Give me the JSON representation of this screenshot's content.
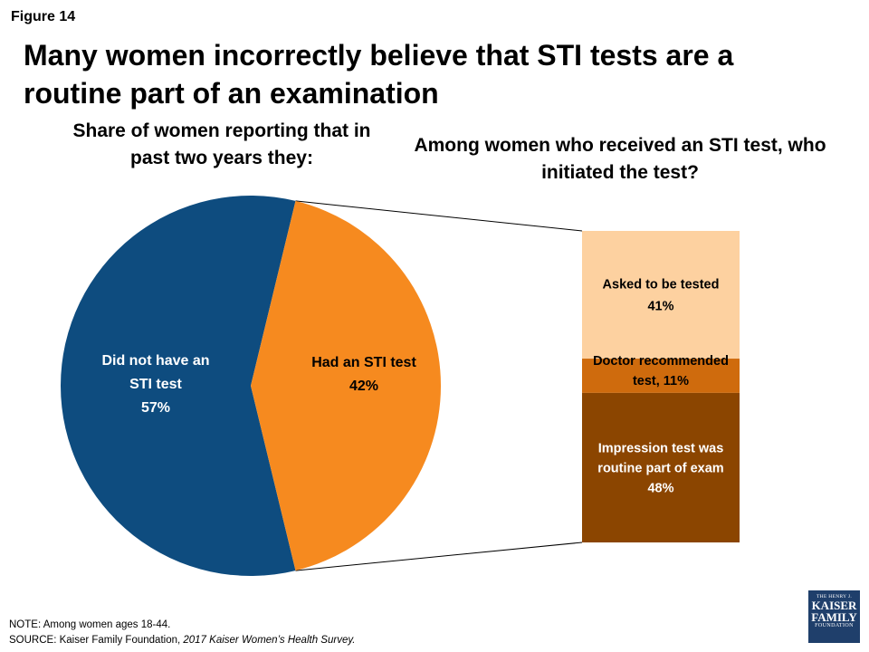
{
  "figure_label": "Figure 14",
  "title": "Many women incorrectly believe that STI tests are a routine part of an examination",
  "left_subtitle": "Share of women reporting that in past two years they:",
  "right_subtitle": "Among women who received an STI test, who initiated the test?",
  "chart_data": [
    {
      "type": "pie",
      "slices": [
        {
          "label_lines": [
            "Did not have an",
            "STI test",
            "57%"
          ],
          "value": 57,
          "color": "#0e4c7f",
          "text_color": "#ffffff"
        },
        {
          "label_lines": [
            "Had an STI test",
            "42%"
          ],
          "value": 42,
          "color": "#f68a1f",
          "text_color": "#000000"
        }
      ]
    },
    {
      "type": "bar",
      "stacked": true,
      "segments": [
        {
          "label_lines": [
            "Asked to be tested",
            "41%"
          ],
          "value": 41,
          "color": "#fdd1a0",
          "text_color": "#000000"
        },
        {
          "label_lines": [
            "Doctor recommended",
            "test, 11%"
          ],
          "value": 11,
          "color": "#cf6b0d",
          "text_color": "#000000"
        },
        {
          "label_lines": [
            "Impression test was",
            "routine part of exam",
            "48%"
          ],
          "value": 48,
          "color": "#8b4500",
          "text_color": "#ffffff"
        }
      ]
    }
  ],
  "note": "NOTE: Among women ages 18-44.",
  "source_prefix": "SOURCE: Kaiser Family Foundation, ",
  "source_italic": "2017 Kaiser Women’s Health Survey.",
  "logo": {
    "line1": "THE HENRY J.",
    "line2": "KAISER",
    "line3": "FAMILY",
    "line4": "FOUNDATION"
  }
}
